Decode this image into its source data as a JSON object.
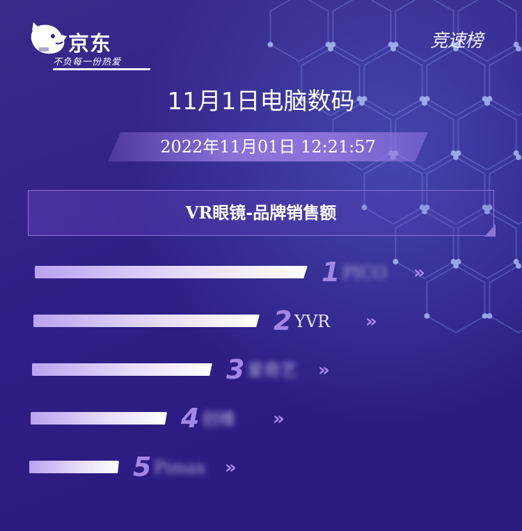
{
  "header": {
    "brand": "京东",
    "slogan": "不负每一份热爱",
    "badge": "竞速榜"
  },
  "title": "11月1日电脑数码",
  "datetime": "2022年11月01日  12:21:57",
  "colors": {
    "background": "#2f1f86",
    "bar": "#e6dcfb",
    "rank": "#a287e6",
    "chevron": "#a68af0",
    "section_border": "#8a74d6"
  },
  "icons": [
    "jd-dog-mascot-icon",
    "double-chevron-right-icon"
  ],
  "chart_data": {
    "type": "bar",
    "orientation": "horizontal",
    "title": "VR眼镜-品牌销售额",
    "ranks": [
      "1",
      "2",
      "3",
      "4",
      "5"
    ],
    "categories": [
      "PICO",
      "YVR",
      "爱奇艺",
      "创维",
      "Pimax"
    ],
    "values": [
      100,
      83,
      66,
      50,
      33
    ],
    "grid": false,
    "legend": "none"
  },
  "chevron": "»"
}
